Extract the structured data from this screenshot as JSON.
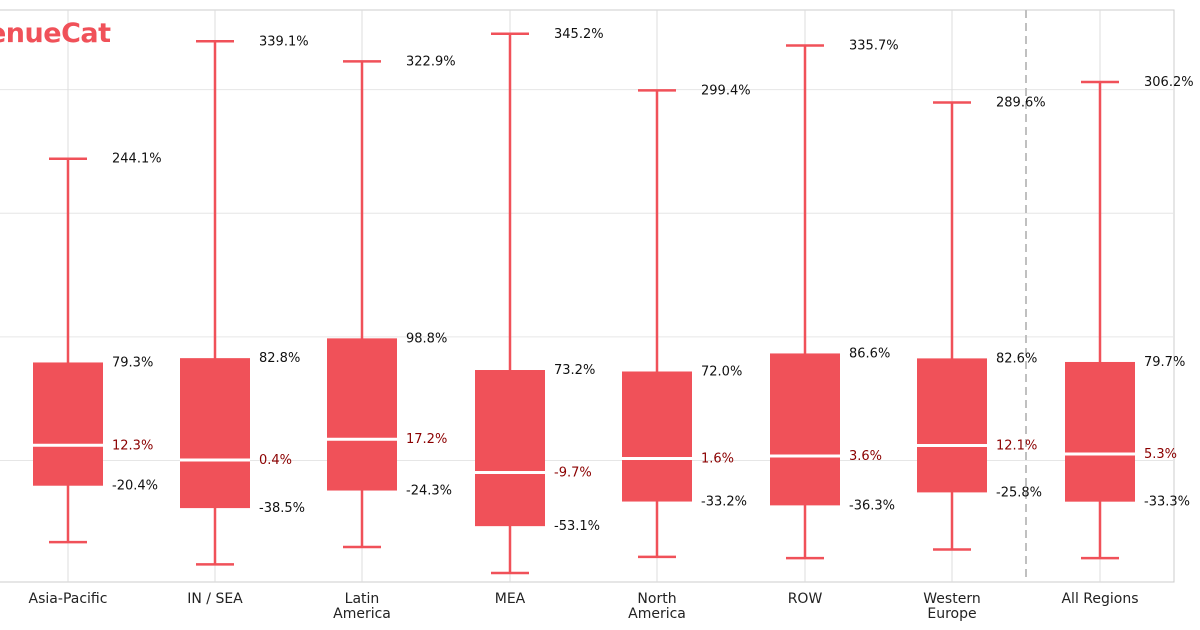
{
  "brand": {
    "logo_text": "enueCat",
    "color": "#F05159"
  },
  "colors": {
    "box": "#F05159",
    "median_line": "#ffffff",
    "median_label": "#8B0000",
    "label": "#111111",
    "grid": "#e6e6e6",
    "divider": "#c0c0c0"
  },
  "chart_data": {
    "type": "box",
    "unit": "%",
    "grid": true,
    "divider_before_category": "All Regions",
    "categories": [
      {
        "label": [
          "Asia-Pacific"
        ],
        "whisker_low": null,
        "q1": -20.4,
        "median": 12.3,
        "q3": 79.3,
        "whisker_high": 244.1
      },
      {
        "label": [
          "IN / SEA"
        ],
        "whisker_low": null,
        "q1": -38.5,
        "median": 0.4,
        "q3": 82.8,
        "whisker_high": 339.1
      },
      {
        "label": [
          "Latin",
          "America"
        ],
        "whisker_low": null,
        "q1": -24.3,
        "median": 17.2,
        "q3": 98.8,
        "whisker_high": 322.9
      },
      {
        "label": [
          "MEA"
        ],
        "whisker_low": null,
        "q1": -53.1,
        "median": -9.7,
        "q3": 73.2,
        "whisker_high": 345.2
      },
      {
        "label": [
          "North",
          "America"
        ],
        "whisker_low": null,
        "q1": -33.2,
        "median": 1.6,
        "q3": 72.0,
        "whisker_high": 299.4
      },
      {
        "label": [
          "ROW"
        ],
        "whisker_low": null,
        "q1": -36.3,
        "median": 3.6,
        "q3": 86.6,
        "whisker_high": 335.7
      },
      {
        "label": [
          "Western",
          "Europe"
        ],
        "whisker_low": null,
        "q1": -25.8,
        "median": 12.1,
        "q3": 82.6,
        "whisker_high": 289.6
      },
      {
        "label": [
          "All Regions"
        ],
        "whisker_low": null,
        "q1": -33.3,
        "median": 5.3,
        "q3": 79.7,
        "whisker_high": 306.2
      }
    ],
    "lower_whisker_estimates": [
      -66,
      -84,
      -70,
      -91,
      -78,
      -79,
      -72,
      -79
    ],
    "value_labels": {
      "whisker_high": [
        "244.1%",
        "339.1%",
        "322.9%",
        "345.2%",
        "299.4%",
        "335.7%",
        "289.6%",
        "306.2%"
      ],
      "q3": [
        "79.3%",
        "82.8%",
        "98.8%",
        "73.2%",
        "72.0%",
        "86.6%",
        "82.6%",
        "79.7%"
      ],
      "median": [
        "12.3%",
        "0.4%",
        "17.2%",
        "-9.7%",
        "1.6%",
        "3.6%",
        "12.1%",
        "5.3%"
      ],
      "q1": [
        "-20.4%",
        "-38.5%",
        "-24.3%",
        "-53.1%",
        "-33.2%",
        "-36.3%",
        "-25.8%",
        "-33.3%"
      ]
    }
  }
}
